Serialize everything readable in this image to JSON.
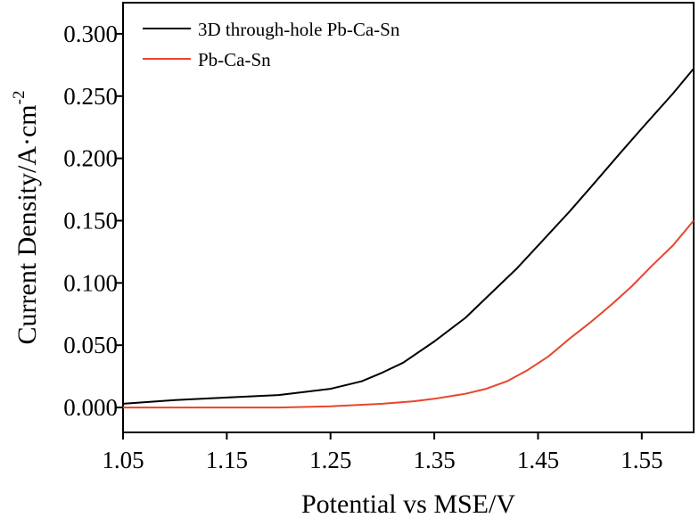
{
  "chart_data": {
    "type": "line",
    "title": "",
    "xlabel": "Potential vs MSE/V",
    "ylabel_main": "Current Density/A·cm",
    "ylabel_exp": "-2",
    "xlim": [
      1.05,
      1.6
    ],
    "ylim": [
      -0.02,
      0.325
    ],
    "x_ticks": [
      1.05,
      1.15,
      1.25,
      1.35,
      1.45,
      1.55
    ],
    "x_tick_labels": [
      "1.05",
      "1.15",
      "1.25",
      "1.35",
      "1.45",
      "1.55"
    ],
    "y_ticks": [
      0.0,
      0.05,
      0.1,
      0.15,
      0.2,
      0.25,
      0.3
    ],
    "y_tick_labels": [
      "0.000",
      "0.050",
      "0.100",
      "0.150",
      "0.200",
      "0.250",
      "0.300"
    ],
    "grid": false,
    "legend_position": "top-left",
    "series": [
      {
        "name": "3D through-hole Pb-Ca-Sn",
        "color": "#000000",
        "x": [
          1.05,
          1.1,
          1.15,
          1.2,
          1.25,
          1.28,
          1.3,
          1.32,
          1.35,
          1.38,
          1.4,
          1.43,
          1.45,
          1.48,
          1.5,
          1.53,
          1.55,
          1.58,
          1.6
        ],
        "y": [
          0.003,
          0.006,
          0.008,
          0.01,
          0.015,
          0.021,
          0.028,
          0.036,
          0.053,
          0.072,
          0.088,
          0.112,
          0.13,
          0.157,
          0.176,
          0.205,
          0.224,
          0.252,
          0.272
        ]
      },
      {
        "name": "Pb-Ca-Sn",
        "color": "#e8452c",
        "x": [
          1.05,
          1.1,
          1.15,
          1.2,
          1.25,
          1.3,
          1.33,
          1.35,
          1.38,
          1.4,
          1.42,
          1.44,
          1.46,
          1.48,
          1.5,
          1.52,
          1.54,
          1.56,
          1.58,
          1.6
        ],
        "y": [
          0.0,
          0.0,
          0.0,
          0.0,
          0.001,
          0.003,
          0.005,
          0.007,
          0.011,
          0.015,
          0.021,
          0.03,
          0.041,
          0.055,
          0.068,
          0.082,
          0.097,
          0.114,
          0.13,
          0.15
        ]
      }
    ]
  }
}
